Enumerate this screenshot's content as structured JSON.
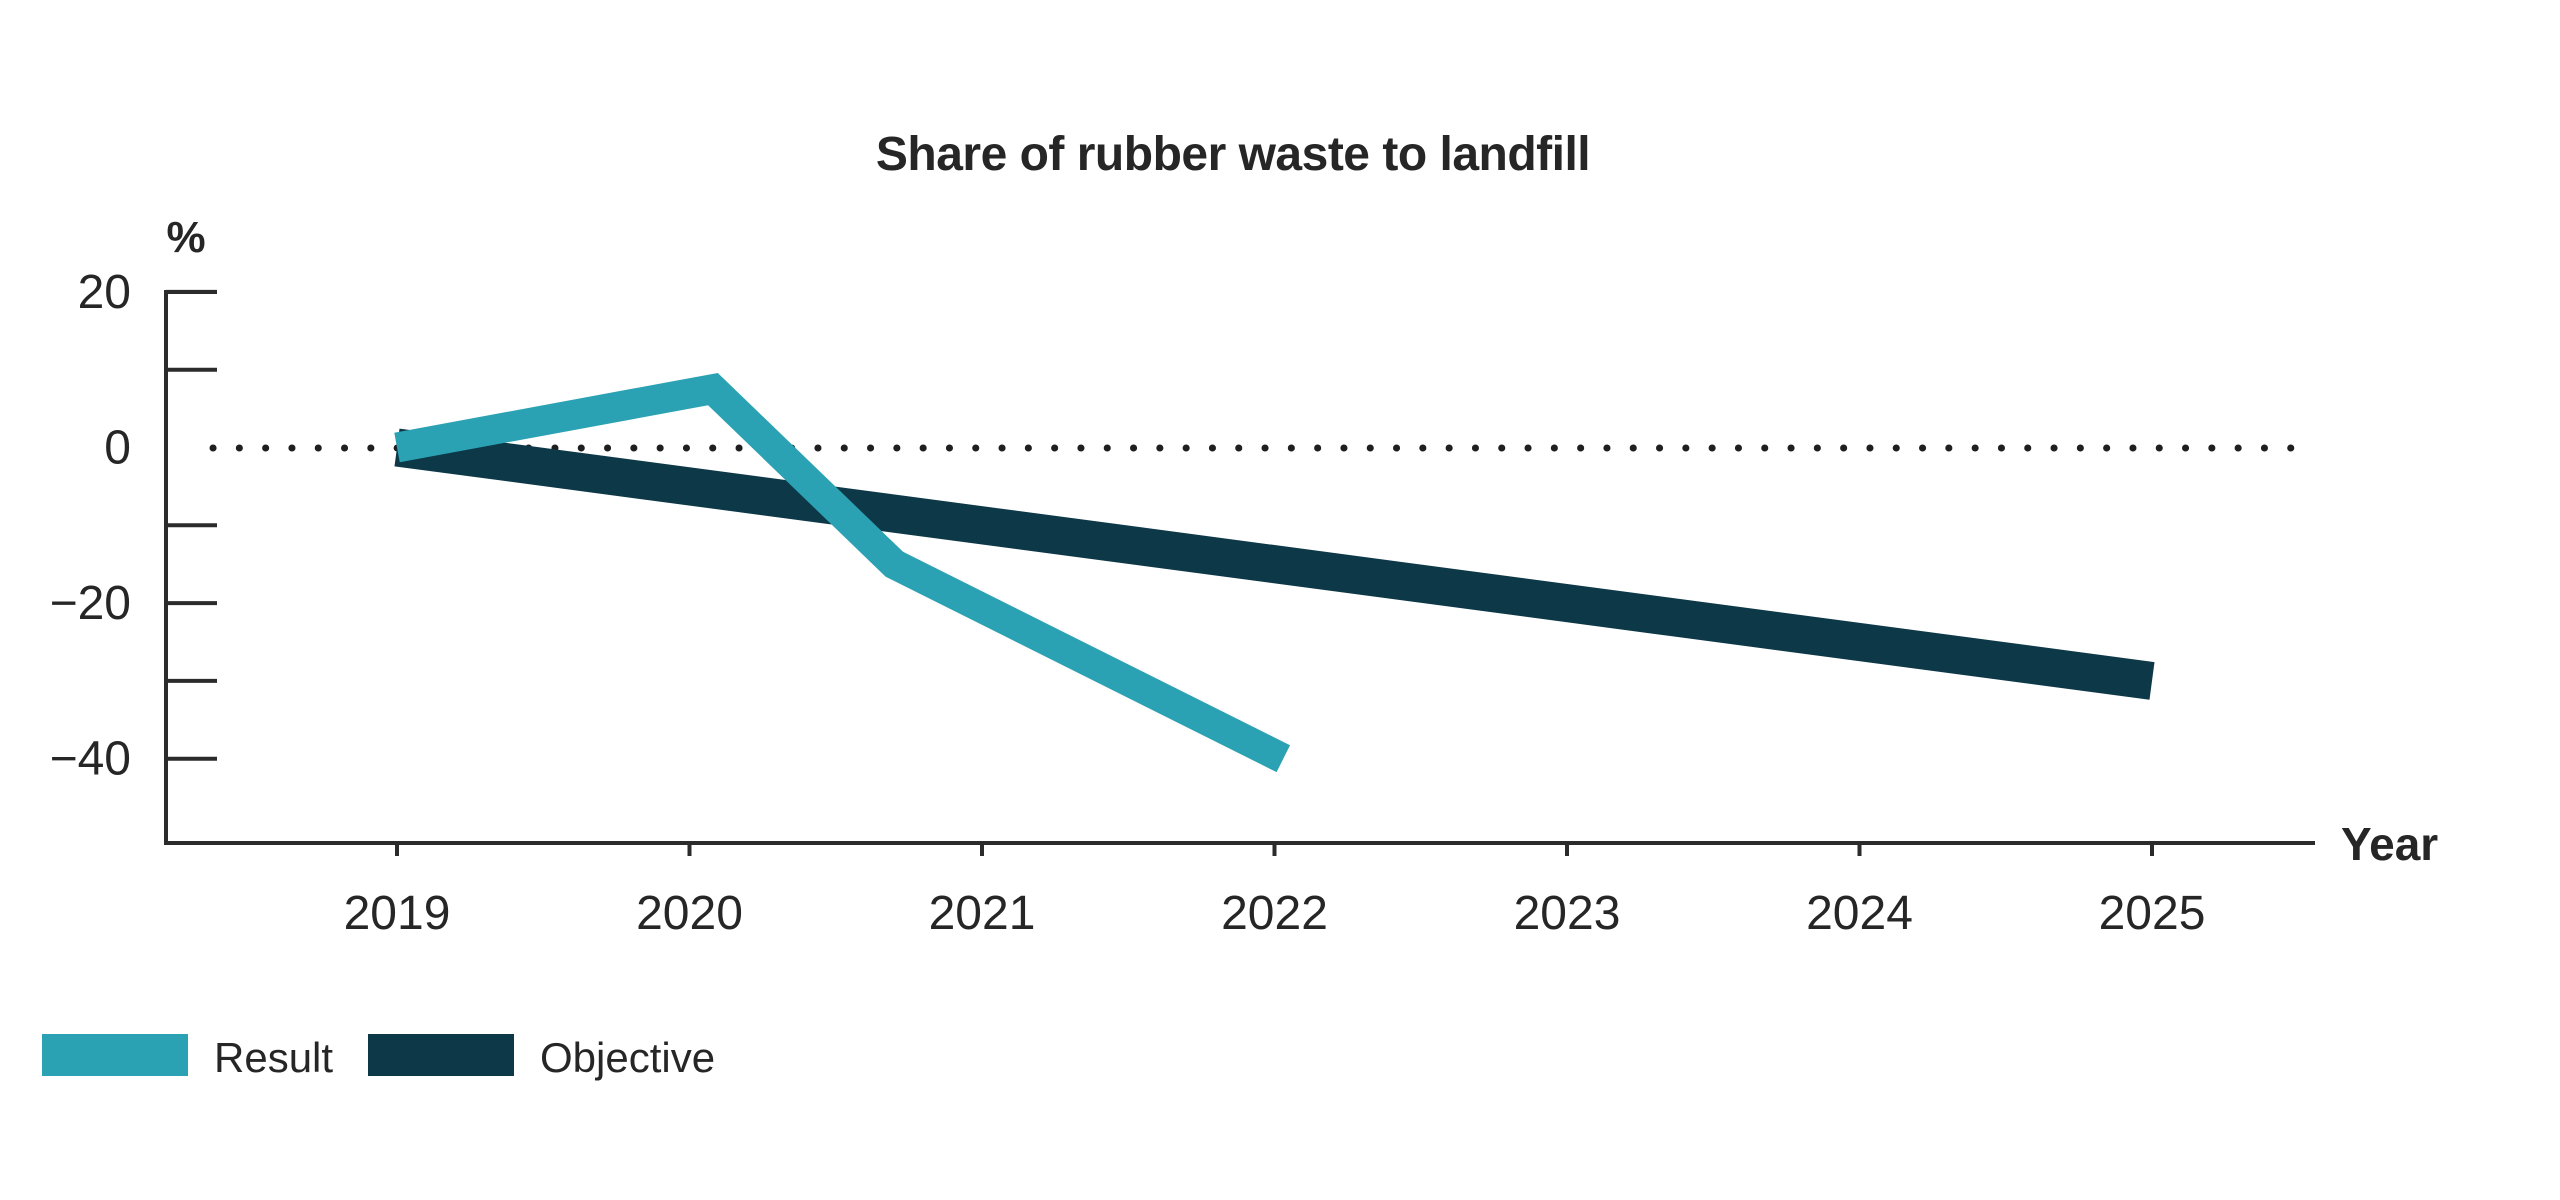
{
  "chart": {
    "title": "Share of rubber waste to landfill",
    "y_axis": {
      "unit_label": "%",
      "tick_labels": [
        "20",
        "0",
        "−20",
        "−40"
      ],
      "tick_label_values": [
        20,
        0,
        -20,
        -40
      ],
      "tick_mark_values": [
        20,
        10,
        -10,
        -20,
        -30,
        -40
      ],
      "range_top": 20,
      "range_bottom": -50
    },
    "x_axis": {
      "title": "Year",
      "tick_labels": [
        "2019",
        "2020",
        "2021",
        "2022",
        "2023",
        "2024",
        "2025"
      ],
      "tick_years": [
        2019,
        2020,
        2021,
        2022,
        2023,
        2024,
        2025
      ]
    }
  },
  "chart_data": {
    "type": "line",
    "title": "Share of rubber waste to landfill",
    "xlabel": "Year",
    "ylabel": "%",
    "ylim": [
      -50,
      20
    ],
    "xlim": [
      2018.2,
      2025.55
    ],
    "grid": false,
    "zero_reference_line": {
      "y": 0,
      "style": "dotted"
    },
    "legend_position": "bottom-left",
    "series": [
      {
        "name": "Result",
        "color": "#2aa2b3",
        "stroke_width_px": 30,
        "points": [
          {
            "x": 2019,
            "y": 0
          },
          {
            "x": 2020.08,
            "y": 7.5
          },
          {
            "x": 2020.7,
            "y": -15
          },
          {
            "x": 2022.03,
            "y": -40
          }
        ],
        "approx_values_at_year_ticks": {
          "2019": 0,
          "2020": 8,
          "2021": -21,
          "2022": -40
        }
      },
      {
        "name": "Objective",
        "color": "#0d3847",
        "stroke_width_px": 38,
        "points": [
          {
            "x": 2019,
            "y": 0
          },
          {
            "x": 2025,
            "y": -30
          }
        ],
        "approx_values_at_year_ticks": {
          "2019": 0,
          "2025": -30
        }
      }
    ]
  },
  "legend": {
    "items": [
      {
        "label": "Result",
        "color": "#2aa2b3"
      },
      {
        "label": "Objective",
        "color": "#0d3847"
      }
    ]
  }
}
